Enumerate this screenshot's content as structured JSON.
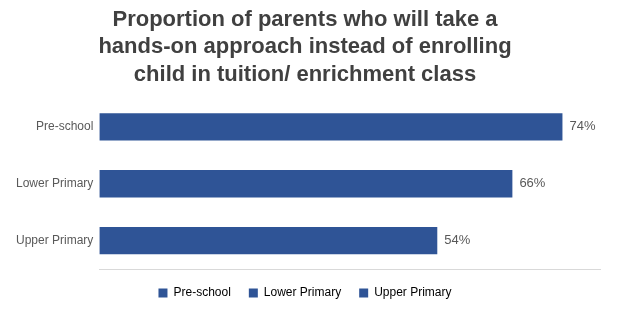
{
  "chart_data": {
    "type": "bar",
    "orientation": "horizontal",
    "title": "Proportion of parents who will take a hands-on approach instead of enrolling child in tuition/ enrichment class",
    "categories": [
      "Pre-school",
      "Lower Primary",
      "Upper Primary"
    ],
    "values": [
      74,
      66,
      54
    ],
    "value_labels": [
      "74%",
      "66%",
      "54%"
    ],
    "color": "#2f5496",
    "xlim": [
      0,
      80
    ],
    "grid": false,
    "data_labels": true,
    "tick_labels": "y",
    "legend": "bottom"
  }
}
